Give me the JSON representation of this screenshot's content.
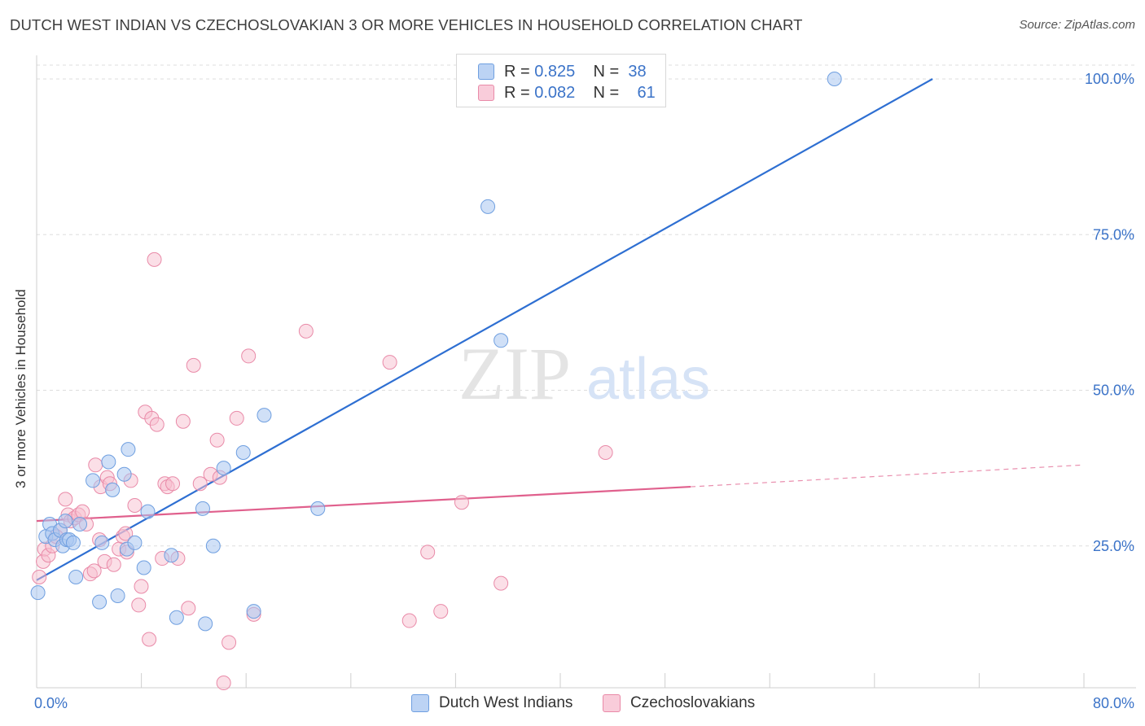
{
  "title": "DUTCH WEST INDIAN VS CZECHOSLOVAKIAN 3 OR MORE VEHICLES IN HOUSEHOLD CORRELATION CHART",
  "source": "Source: ZipAtlas.com",
  "watermark": {
    "zip": "ZIP",
    "atlas": "atlas"
  },
  "legend_top": {
    "rows": [
      {
        "r_label": "R =",
        "r_value": "0.825",
        "n_label": "N =",
        "n_value": "38"
      },
      {
        "r_label": "R =",
        "r_value": "0.082",
        "n_label": "N =",
        "n_value": "61"
      }
    ]
  },
  "legend_bottom": {
    "series1": "Dutch West Indians",
    "series2": "Czechoslovakians"
  },
  "colors": {
    "blue_fill": "#a9c7f0",
    "blue_stroke": "#6f9fe0",
    "blue_line": "#2e6fd2",
    "pink_fill": "#f7bfd0",
    "pink_stroke": "#e98aa8",
    "pink_line": "#e0608d",
    "grid": "#dddddd",
    "tick_label": "#3b73c8"
  },
  "chart_data": {
    "type": "scatter",
    "xlabel": "",
    "ylabel": "3 or more Vehicles in Household",
    "xlim": [
      0,
      80
    ],
    "ylim": [
      0,
      100
    ],
    "x_tick_labels": [
      "0.0%",
      "80.0%"
    ],
    "y_ticks": [
      25,
      50,
      75,
      100
    ],
    "y_tick_labels": [
      "25.0%",
      "50.0%",
      "75.0%",
      "100.0%"
    ],
    "grid": true,
    "series": [
      {
        "name": "Dutch West Indians",
        "r": 0.825,
        "n": 38,
        "trend": {
          "x0": 0,
          "y0": 19.5,
          "x1": 68.5,
          "y1": 100,
          "dashed_to": null
        },
        "points": [
          [
            0.1,
            17.5
          ],
          [
            0.7,
            26.5
          ],
          [
            1.0,
            28.5
          ],
          [
            1.2,
            27.0
          ],
          [
            1.4,
            26.0
          ],
          [
            1.8,
            27.5
          ],
          [
            2.0,
            25.0
          ],
          [
            2.3,
            26.0
          ],
          [
            2.5,
            26.0
          ],
          [
            2.8,
            25.5
          ],
          [
            3.0,
            20.0
          ],
          [
            3.3,
            28.5
          ],
          [
            4.3,
            35.5
          ],
          [
            4.8,
            16.0
          ],
          [
            5.5,
            38.5
          ],
          [
            5.8,
            34.0
          ],
          [
            6.2,
            17.0
          ],
          [
            6.7,
            36.5
          ],
          [
            7.0,
            40.5
          ],
          [
            6.9,
            24.5
          ],
          [
            7.5,
            25.5
          ],
          [
            8.2,
            21.5
          ],
          [
            8.5,
            30.5
          ],
          [
            10.3,
            23.5
          ],
          [
            10.7,
            13.5
          ],
          [
            12.7,
            31.0
          ],
          [
            12.9,
            12.5
          ],
          [
            13.5,
            25.0
          ],
          [
            14.3,
            37.5
          ],
          [
            15.8,
            40.0
          ],
          [
            16.6,
            14.5
          ],
          [
            17.4,
            46.0
          ],
          [
            21.5,
            31.0
          ],
          [
            34.5,
            79.5
          ],
          [
            35.5,
            58.0
          ],
          [
            61.0,
            100.0
          ],
          [
            2.2,
            29.0
          ],
          [
            5.0,
            25.5
          ]
        ]
      },
      {
        "name": "Czechoslovakians",
        "r": 0.082,
        "n": 61,
        "trend": {
          "x0": 0,
          "y0": 29.0,
          "x1": 50,
          "y1": 34.5,
          "dashed_to": [
            80,
            38.0
          ]
        },
        "points": [
          [
            0.2,
            20.0
          ],
          [
            0.5,
            22.5
          ],
          [
            0.6,
            24.5
          ],
          [
            0.9,
            23.5
          ],
          [
            1.2,
            25.0
          ],
          [
            1.8,
            27.5
          ],
          [
            2.2,
            32.5
          ],
          [
            2.4,
            30.0
          ],
          [
            2.6,
            29.0
          ],
          [
            2.9,
            29.5
          ],
          [
            3.2,
            30.0
          ],
          [
            3.5,
            30.5
          ],
          [
            3.8,
            28.5
          ],
          [
            4.1,
            20.5
          ],
          [
            4.4,
            21.0
          ],
          [
            4.5,
            38.0
          ],
          [
            4.8,
            26.0
          ],
          [
            4.9,
            34.5
          ],
          [
            5.2,
            22.5
          ],
          [
            5.4,
            36.0
          ],
          [
            5.6,
            35.0
          ],
          [
            5.9,
            22.0
          ],
          [
            6.3,
            24.5
          ],
          [
            6.6,
            26.5
          ],
          [
            6.8,
            27.0
          ],
          [
            6.9,
            24.0
          ],
          [
            7.2,
            35.5
          ],
          [
            7.5,
            31.5
          ],
          [
            7.8,
            15.5
          ],
          [
            8.0,
            18.5
          ],
          [
            8.3,
            46.5
          ],
          [
            8.6,
            10.0
          ],
          [
            8.8,
            45.5
          ],
          [
            9.0,
            71.0
          ],
          [
            9.2,
            44.5
          ],
          [
            9.6,
            23.0
          ],
          [
            9.8,
            35.0
          ],
          [
            10.0,
            34.5
          ],
          [
            10.4,
            35.0
          ],
          [
            10.8,
            23.0
          ],
          [
            11.2,
            45.0
          ],
          [
            11.6,
            15.0
          ],
          [
            12.0,
            54.0
          ],
          [
            12.5,
            35.0
          ],
          [
            13.3,
            36.5
          ],
          [
            13.8,
            42.0
          ],
          [
            14.3,
            3.0
          ],
          [
            14.7,
            9.5
          ],
          [
            15.3,
            45.5
          ],
          [
            16.2,
            55.5
          ],
          [
            16.6,
            14.0
          ],
          [
            20.6,
            59.5
          ],
          [
            27.0,
            54.5
          ],
          [
            28.5,
            13.0
          ],
          [
            29.9,
            24.0
          ],
          [
            30.9,
            14.5
          ],
          [
            32.5,
            32.0
          ],
          [
            35.5,
            19.0
          ],
          [
            43.5,
            40.0
          ],
          [
            14.0,
            36.0
          ],
          [
            1.5,
            26.5
          ]
        ]
      }
    ]
  }
}
